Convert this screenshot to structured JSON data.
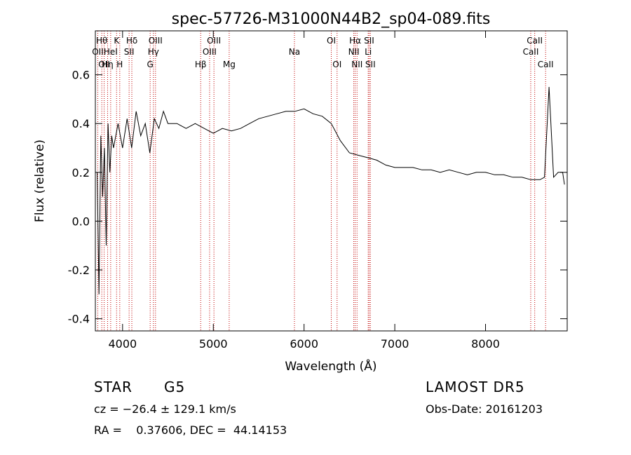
{
  "chart_data": {
    "type": "line",
    "title": "spec-57726-M31000N44B2_sp04-089.fits",
    "xlabel": "Wavelength (Å)",
    "ylabel": "Flux (relative)",
    "xlim": [
      3700,
      8900
    ],
    "ylim": [
      -0.45,
      0.78
    ],
    "xticks": [
      4000,
      5000,
      6000,
      7000,
      8000
    ],
    "yticks": [
      -0.4,
      -0.2,
      0.0,
      0.2,
      0.4,
      0.6
    ],
    "grid": false,
    "series": [
      {
        "x": [
          3720,
          3740,
          3760,
          3780,
          3800,
          3820,
          3840,
          3860,
          3880,
          3900,
          3950,
          4000,
          4050,
          4100,
          4150,
          4200,
          4250,
          4300,
          4350,
          4400,
          4450,
          4500,
          4600,
          4700,
          4800,
          4900,
          5000,
          5100,
          5200,
          5300,
          5400,
          5500,
          5600,
          5700,
          5800,
          5900,
          6000,
          6100,
          6200,
          6300,
          6400,
          6500,
          6600,
          6700,
          6800,
          6900,
          7000,
          7100,
          7200,
          7300,
          7400,
          7500,
          7600,
          7700,
          7800,
          7900,
          8000,
          8100,
          8200,
          8300,
          8400,
          8500,
          8600,
          8650,
          8700,
          8750,
          8800,
          8850,
          8870
        ],
        "y": [
          0.2,
          -0.3,
          0.35,
          0.1,
          0.3,
          -0.1,
          0.4,
          0.2,
          0.35,
          0.3,
          0.4,
          0.3,
          0.42,
          0.3,
          0.45,
          0.35,
          0.4,
          0.28,
          0.42,
          0.38,
          0.45,
          0.4,
          0.4,
          0.38,
          0.4,
          0.38,
          0.36,
          0.38,
          0.37,
          0.38,
          0.4,
          0.42,
          0.43,
          0.44,
          0.45,
          0.45,
          0.46,
          0.44,
          0.43,
          0.4,
          0.33,
          0.28,
          0.27,
          0.26,
          0.25,
          0.23,
          0.22,
          0.22,
          0.22,
          0.21,
          0.21,
          0.2,
          0.21,
          0.2,
          0.19,
          0.2,
          0.2,
          0.19,
          0.19,
          0.18,
          0.18,
          0.17,
          0.17,
          0.18,
          0.55,
          0.18,
          0.2,
          0.2,
          0.15
        ]
      }
    ],
    "lines": [
      {
        "wl": 3727,
        "labels": [
          {
            "t": "OII",
            "row": 2
          }
        ]
      },
      {
        "wl": 3771,
        "labels": [
          {
            "t": "Hθ",
            "row": 1
          }
        ]
      },
      {
        "wl": 3797,
        "labels": [
          {
            "t": "OII",
            "row": 3
          }
        ]
      },
      {
        "wl": 3835,
        "labels": [
          {
            "t": "Hη",
            "row": 3
          }
        ]
      },
      {
        "wl": 3869,
        "labels": [
          {
            "t": "HeI",
            "row": 2
          }
        ]
      },
      {
        "wl": 3934,
        "labels": [
          {
            "t": "K",
            "row": 1
          }
        ]
      },
      {
        "wl": 3969,
        "labels": [
          {
            "t": "H",
            "row": 3
          }
        ]
      },
      {
        "wl": 4072,
        "labels": [
          {
            "t": "SII",
            "row": 2
          }
        ]
      },
      {
        "wl": 4102,
        "labels": [
          {
            "t": "Hδ",
            "row": 1
          }
        ]
      },
      {
        "wl": 4304,
        "labels": [
          {
            "t": "G",
            "row": 3
          }
        ]
      },
      {
        "wl": 4340,
        "labels": [
          {
            "t": "Hγ",
            "row": 2
          }
        ]
      },
      {
        "wl": 4363,
        "labels": [
          {
            "t": "OIII",
            "row": 1
          }
        ]
      },
      {
        "wl": 4861,
        "labels": [
          {
            "t": "Hβ",
            "row": 3
          }
        ]
      },
      {
        "wl": 4959,
        "labels": [
          {
            "t": "OIII",
            "row": 2
          }
        ]
      },
      {
        "wl": 5007,
        "labels": [
          {
            "t": "OIII",
            "row": 1
          }
        ]
      },
      {
        "wl": 5175,
        "labels": [
          {
            "t": "Mg",
            "row": 3
          }
        ]
      },
      {
        "wl": 5894,
        "labels": [
          {
            "t": "Na",
            "row": 2
          }
        ]
      },
      {
        "wl": 6300,
        "labels": [
          {
            "t": "OI",
            "row": 1
          }
        ]
      },
      {
        "wl": 6364,
        "labels": [
          {
            "t": "OI",
            "row": 3
          }
        ]
      },
      {
        "wl": 6548,
        "labels": [
          {
            "t": "NII",
            "row": 2
          }
        ]
      },
      {
        "wl": 6563,
        "labels": [
          {
            "t": "Hα",
            "row": 1
          }
        ]
      },
      {
        "wl": 6584,
        "labels": [
          {
            "t": "NII",
            "row": 3
          }
        ]
      },
      {
        "wl": 6707,
        "labels": [
          {
            "t": "Li",
            "row": 2
          }
        ]
      },
      {
        "wl": 6717,
        "labels": [
          {
            "t": "SII",
            "row": 1
          }
        ]
      },
      {
        "wl": 6731,
        "labels": [
          {
            "t": "SII",
            "row": 3
          }
        ]
      },
      {
        "wl": 8498,
        "labels": [
          {
            "t": "CaII",
            "row": 2
          }
        ]
      },
      {
        "wl": 8542,
        "labels": [
          {
            "t": "CaII",
            "row": 1
          }
        ]
      },
      {
        "wl": 8662,
        "labels": [
          {
            "t": "CaII",
            "row": 3
          }
        ]
      }
    ],
    "line_color": "#c00000",
    "spectrum_color": "#000000"
  },
  "info": {
    "class": "STAR",
    "subclass": "G5",
    "survey": "LAMOST DR5",
    "cz": "cz = −26.4 ± 129.1 km/s",
    "obsdate": "Obs-Date: 20161203",
    "radec": "RA =    0.37606, DEC =  44.14153"
  }
}
